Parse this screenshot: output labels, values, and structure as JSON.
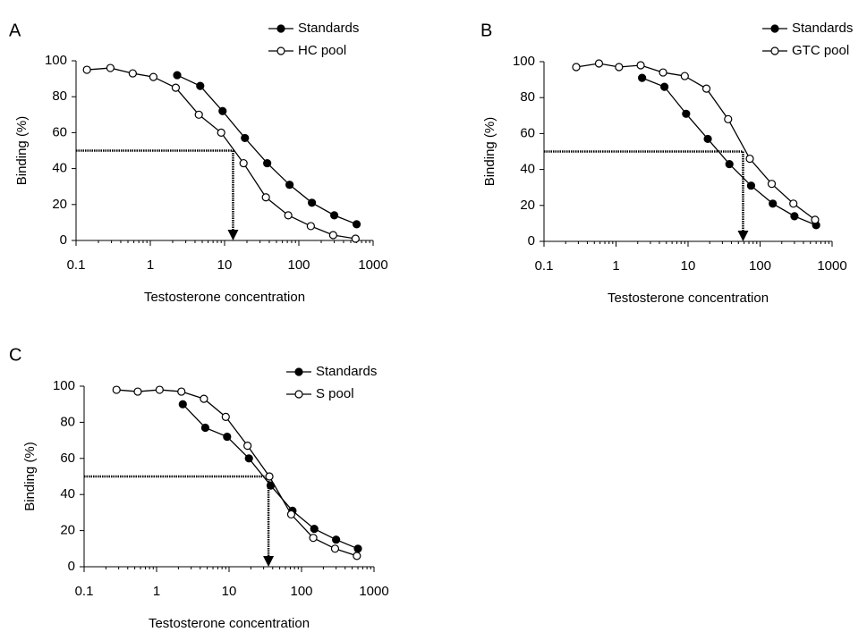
{
  "chart_data": [
    {
      "type": "line",
      "panel_label": "A",
      "xlabel": "Testosterone concentration",
      "ylabel": "Binding (%)",
      "log_x": true,
      "xlim": [
        0.1,
        1000
      ],
      "xticks": [
        0.1,
        1,
        10,
        100,
        1000
      ],
      "ylim": [
        0,
        100
      ],
      "yticks": [
        0,
        20,
        40,
        60,
        80,
        100
      ],
      "reference": {
        "x": 13,
        "y": 50
      },
      "series": [
        {
          "name": "Standards",
          "color": "#000000",
          "marker": "filled",
          "x": [
            2.3,
            4.7,
            9.4,
            18.8,
            37.5,
            75,
            150,
            300,
            600
          ],
          "values": [
            92,
            86,
            72,
            57,
            43,
            31,
            21,
            14,
            9
          ]
        },
        {
          "name": "HC pool",
          "color": "#000000",
          "marker": "open",
          "x": [
            0.14,
            0.29,
            0.58,
            1.1,
            2.2,
            4.5,
            9,
            18,
            36,
            72,
            145,
            290,
            580
          ],
          "values": [
            95,
            96,
            93,
            91,
            85,
            70,
            60,
            43,
            24,
            14,
            8,
            3,
            1
          ]
        }
      ]
    },
    {
      "type": "line",
      "panel_label": "B",
      "xlabel": "Testosterone concentration",
      "ylabel": "Binding (%)",
      "log_x": true,
      "xlim": [
        0.1,
        1000
      ],
      "xticks": [
        0.1,
        1,
        10,
        100,
        1000
      ],
      "ylim": [
        0,
        100
      ],
      "yticks": [
        0,
        20,
        40,
        60,
        80,
        100
      ],
      "reference": {
        "x": 58,
        "y": 50
      },
      "series": [
        {
          "name": "Standards",
          "color": "#000000",
          "marker": "filled",
          "x": [
            2.3,
            4.7,
            9.4,
            18.8,
            37.5,
            75,
            150,
            300,
            600
          ],
          "values": [
            91,
            86,
            71,
            57,
            43,
            31,
            21,
            14,
            9
          ]
        },
        {
          "name": "GTC pool",
          "color": "#000000",
          "marker": "open",
          "x": [
            0.28,
            0.58,
            1.1,
            2.2,
            4.5,
            9,
            18,
            36,
            72,
            145,
            290,
            580
          ],
          "values": [
            97,
            99,
            97,
            98,
            94,
            92,
            85,
            68,
            46,
            32,
            21,
            12
          ]
        }
      ]
    },
    {
      "type": "line",
      "panel_label": "C",
      "xlabel": "Testosterone concentration",
      "ylabel": "Binding (%)",
      "log_x": true,
      "xlim": [
        0.1,
        1000
      ],
      "xticks": [
        0.1,
        1,
        10,
        100,
        1000
      ],
      "ylim": [
        0,
        100
      ],
      "yticks": [
        0,
        20,
        40,
        60,
        80,
        100
      ],
      "reference": {
        "x": 35,
        "y": 50
      },
      "series": [
        {
          "name": "Standards",
          "color": "#000000",
          "marker": "filled",
          "x": [
            2.3,
            4.7,
            9.4,
            18.8,
            37.5,
            75,
            150,
            300,
            600
          ],
          "values": [
            90,
            77,
            72,
            60,
            45,
            31,
            21,
            15,
            10
          ]
        },
        {
          "name": "S pool",
          "color": "#000000",
          "marker": "open",
          "x": [
            0.28,
            0.55,
            1.1,
            2.2,
            4.5,
            9,
            18,
            36,
            72,
            145,
            290,
            580
          ],
          "values": [
            98,
            97,
            98,
            97,
            93,
            83,
            67,
            50,
            29,
            16,
            10,
            6
          ]
        }
      ]
    }
  ]
}
